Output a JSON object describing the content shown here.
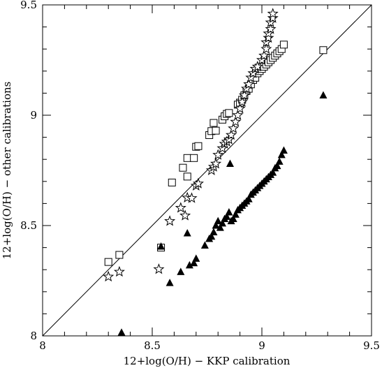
{
  "chart_data": {
    "type": "scatter",
    "xlabel": "12+log(O/H)  −  KKP calibration",
    "ylabel": "12+log(O/H)  −  other calibrations",
    "xlim": [
      8,
      9.5
    ],
    "ylim": [
      8,
      9.5
    ],
    "xticks": [
      {
        "value": 8,
        "label": "8"
      },
      {
        "value": 8.5,
        "label": "8.5"
      },
      {
        "value": 9,
        "label": "9"
      },
      {
        "value": 9.5,
        "label": "9.5"
      }
    ],
    "yticks": [
      {
        "value": 8,
        "label": "8"
      },
      {
        "value": 8.5,
        "label": "8.5"
      },
      {
        "value": 9,
        "label": "9"
      },
      {
        "value": 9.5,
        "label": "9.5"
      }
    ],
    "minor_tick_step": 0.1,
    "grid": false,
    "reference_line": {
      "from": [
        8,
        8
      ],
      "to": [
        9.5,
        9.5
      ]
    },
    "series": [
      {
        "marker": "open-square",
        "color": "#000000",
        "points": [
          [
            8.3,
            8.335
          ],
          [
            8.35,
            8.367
          ],
          [
            8.54,
            8.4
          ],
          [
            8.59,
            8.695
          ],
          [
            8.64,
            8.762
          ],
          [
            8.66,
            8.722
          ],
          [
            8.66,
            8.806
          ],
          [
            8.69,
            8.806
          ],
          [
            8.7,
            8.857
          ],
          [
            8.71,
            8.86
          ],
          [
            8.76,
            8.91
          ],
          [
            8.77,
            8.928
          ],
          [
            8.78,
            8.965
          ],
          [
            8.79,
            8.93
          ],
          [
            8.82,
            8.98
          ],
          [
            8.83,
            8.995
          ],
          [
            8.84,
            9.006
          ],
          [
            8.85,
            9.01
          ],
          [
            8.89,
            9.048
          ],
          [
            8.9,
            9.057
          ],
          [
            8.91,
            9.07
          ],
          [
            8.92,
            9.09
          ],
          [
            8.93,
            9.11
          ],
          [
            8.94,
            9.12
          ],
          [
            8.95,
            9.14
          ],
          [
            8.96,
            9.16
          ],
          [
            8.97,
            9.17
          ],
          [
            8.98,
            9.19
          ],
          [
            8.99,
            9.2
          ],
          [
            9.0,
            9.21
          ],
          [
            9.01,
            9.22
          ],
          [
            9.02,
            9.23
          ],
          [
            9.03,
            9.24
          ],
          [
            9.04,
            9.25
          ],
          [
            9.05,
            9.26
          ],
          [
            9.06,
            9.27
          ],
          [
            9.07,
            9.28
          ],
          [
            9.08,
            9.29
          ],
          [
            9.09,
            9.3
          ],
          [
            9.1,
            9.32
          ],
          [
            9.28,
            9.295
          ]
        ]
      },
      {
        "marker": "open-star",
        "color": "#000000",
        "points": [
          [
            8.3,
            8.268
          ],
          [
            8.35,
            8.29
          ],
          [
            8.53,
            8.302
          ],
          [
            8.58,
            8.52
          ],
          [
            8.63,
            8.58
          ],
          [
            8.65,
            8.545
          ],
          [
            8.66,
            8.626
          ],
          [
            8.68,
            8.624
          ],
          [
            8.7,
            8.68
          ],
          [
            8.71,
            8.69
          ],
          [
            8.77,
            8.75
          ],
          [
            8.78,
            8.766
          ],
          [
            8.79,
            8.78
          ],
          [
            8.8,
            8.82
          ],
          [
            8.82,
            8.85
          ],
          [
            8.83,
            8.87
          ],
          [
            8.84,
            8.88
          ],
          [
            8.85,
            8.89
          ],
          [
            8.86,
            8.91
          ],
          [
            8.87,
            8.94
          ],
          [
            8.88,
            8.97
          ],
          [
            8.89,
            9.0
          ],
          [
            8.9,
            9.03
          ],
          [
            8.91,
            9.06
          ],
          [
            8.92,
            9.09
          ],
          [
            8.93,
            9.12
          ],
          [
            8.94,
            9.14
          ],
          [
            8.95,
            9.17
          ],
          [
            8.96,
            9.19
          ],
          [
            8.97,
            9.21
          ],
          [
            8.98,
            9.22
          ],
          [
            9.0,
            9.25
          ],
          [
            9.01,
            9.27
          ],
          [
            9.02,
            9.3
          ],
          [
            9.02,
            9.33
          ],
          [
            9.03,
            9.35
          ],
          [
            9.03,
            9.37
          ],
          [
            9.04,
            9.39
          ],
          [
            9.04,
            9.42
          ],
          [
            9.05,
            9.44
          ],
          [
            9.05,
            9.46
          ]
        ]
      },
      {
        "marker": "filled-triangle",
        "color": "#000000",
        "points": [
          [
            8.36,
            8.015
          ],
          [
            8.54,
            8.405
          ],
          [
            8.58,
            8.24
          ],
          [
            8.63,
            8.29
          ],
          [
            8.66,
            8.465
          ],
          [
            8.67,
            8.32
          ],
          [
            8.69,
            8.33
          ],
          [
            8.7,
            8.35
          ],
          [
            8.74,
            8.41
          ],
          [
            8.76,
            8.44
          ],
          [
            8.77,
            8.45
          ],
          [
            8.78,
            8.47
          ],
          [
            8.79,
            8.5
          ],
          [
            8.8,
            8.52
          ],
          [
            8.81,
            8.49
          ],
          [
            8.82,
            8.51
          ],
          [
            8.83,
            8.53
          ],
          [
            8.84,
            8.54
          ],
          [
            8.85,
            8.56
          ],
          [
            8.855,
            8.78
          ],
          [
            8.86,
            8.52
          ],
          [
            8.87,
            8.53
          ],
          [
            8.88,
            8.55
          ],
          [
            8.89,
            8.57
          ],
          [
            8.9,
            8.58
          ],
          [
            8.91,
            8.59
          ],
          [
            8.92,
            8.6
          ],
          [
            8.93,
            8.61
          ],
          [
            8.94,
            8.62
          ],
          [
            8.95,
            8.64
          ],
          [
            8.96,
            8.65
          ],
          [
            8.97,
            8.66
          ],
          [
            8.98,
            8.67
          ],
          [
            8.99,
            8.68
          ],
          [
            9.0,
            8.69
          ],
          [
            9.01,
            8.7
          ],
          [
            9.02,
            8.71
          ],
          [
            9.03,
            8.72
          ],
          [
            9.04,
            8.73
          ],
          [
            9.05,
            8.74
          ],
          [
            9.06,
            8.76
          ],
          [
            9.07,
            8.77
          ],
          [
            9.08,
            8.79
          ],
          [
            9.09,
            8.82
          ],
          [
            9.1,
            8.84
          ],
          [
            9.28,
            9.09
          ]
        ]
      }
    ]
  }
}
